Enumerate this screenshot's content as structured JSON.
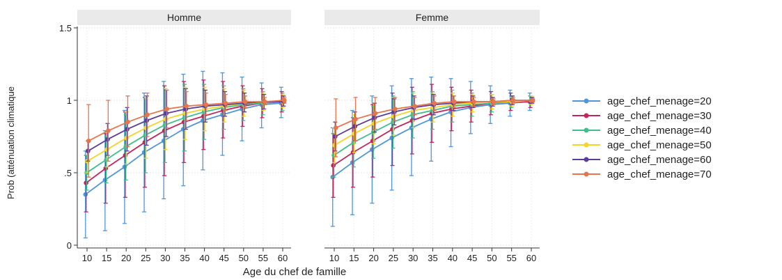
{
  "chart_data": {
    "type": "line",
    "ylabel": "Prob (atténuation climatique",
    "xlabel": "Age du chef de famille",
    "x": [
      10,
      15,
      20,
      25,
      30,
      35,
      40,
      45,
      50,
      55,
      60
    ],
    "xticks": [
      10,
      15,
      20,
      25,
      30,
      35,
      40,
      45,
      50,
      55,
      60
    ],
    "ylim": [
      0,
      1.5
    ],
    "yticks": [
      {
        "value": 0,
        "label": "0"
      },
      {
        "value": 0.5,
        "label": ".5"
      },
      {
        "value": 1,
        "label": "1"
      },
      {
        "value": 1.5,
        "label": "1.5"
      }
    ],
    "grid": true,
    "legend_position": "right",
    "series_colors": [
      "#4e96d9",
      "#c2255b",
      "#3fbf8a",
      "#f5d327",
      "#5a3c9a",
      "#e8744b"
    ],
    "panels": [
      {
        "title": "Homme",
        "series": [
          {
            "name": "age_chef_menage=20",
            "values": [
              0.35,
              0.45,
              0.54,
              0.64,
              0.72,
              0.8,
              0.86,
              0.9,
              0.94,
              0.97,
              0.98
            ],
            "lower": [
              0.05,
              0.1,
              0.15,
              0.23,
              0.32,
              0.41,
              0.52,
              0.62,
              0.72,
              0.81,
              0.88
            ],
            "upper": [
              0.65,
              0.79,
              0.93,
              1.05,
              1.13,
              1.18,
              1.2,
              1.19,
              1.16,
              1.12,
              1.09
            ]
          },
          {
            "name": "age_chef_menage=30",
            "values": [
              0.43,
              0.53,
              0.62,
              0.71,
              0.79,
              0.85,
              0.89,
              0.93,
              0.96,
              0.98,
              0.99
            ],
            "lower": [
              0.23,
              0.29,
              0.33,
              0.4,
              0.48,
              0.57,
              0.66,
              0.74,
              0.82,
              0.88,
              0.92
            ],
            "upper": [
              0.62,
              0.77,
              0.92,
              1.02,
              1.1,
              1.13,
              1.14,
              1.13,
              1.1,
              1.08,
              1.06
            ]
          },
          {
            "name": "age_chef_menage=40",
            "values": [
              0.5,
              0.59,
              0.68,
              0.76,
              0.83,
              0.88,
              0.92,
              0.95,
              0.97,
              0.98,
              0.99
            ],
            "lower": [
              0.38,
              0.43,
              0.45,
              0.5,
              0.57,
              0.65,
              0.73,
              0.8,
              0.86,
              0.9,
              0.93
            ],
            "upper": [
              0.62,
              0.75,
              0.9,
              1.01,
              1.08,
              1.11,
              1.11,
              1.1,
              1.08,
              1.06,
              1.05
            ]
          },
          {
            "name": "age_chef_menage=50",
            "values": [
              0.58,
              0.66,
              0.74,
              0.81,
              0.87,
              0.91,
              0.94,
              0.96,
              0.98,
              0.99,
              0.99
            ],
            "lower": [
              0.5,
              0.54,
              0.56,
              0.6,
              0.66,
              0.73,
              0.79,
              0.85,
              0.89,
              0.93,
              0.95
            ],
            "upper": [
              0.66,
              0.78,
              0.92,
              1.02,
              1.08,
              1.09,
              1.09,
              1.08,
              1.07,
              1.05,
              1.04
            ]
          },
          {
            "name": "age_chef_menage=60",
            "values": [
              0.65,
              0.73,
              0.8,
              0.86,
              0.91,
              0.94,
              0.96,
              0.97,
              0.98,
              0.99,
              0.99
            ],
            "lower": [
              0.58,
              0.62,
              0.65,
              0.69,
              0.75,
              0.8,
              0.85,
              0.89,
              0.92,
              0.94,
              0.96
            ],
            "upper": [
              0.72,
              0.84,
              0.95,
              1.03,
              1.07,
              1.08,
              1.07,
              1.06,
              1.05,
              1.04,
              1.03
            ]
          },
          {
            "name": "age_chef_menage=70",
            "values": [
              0.72,
              0.79,
              0.85,
              0.9,
              0.94,
              0.96,
              0.97,
              0.98,
              0.99,
              0.99,
              1.0
            ],
            "lower": [
              0.47,
              0.58,
              0.68,
              0.75,
              0.81,
              0.86,
              0.9,
              0.93,
              0.95,
              0.97,
              0.98
            ],
            "upper": [
              0.97,
              1.0,
              1.03,
              1.05,
              1.07,
              1.06,
              1.05,
              1.04,
              1.03,
              1.02,
              1.02
            ]
          }
        ]
      },
      {
        "title": "Femme",
        "series": [
          {
            "name": "age_chef_menage=20",
            "values": [
              0.47,
              0.57,
              0.66,
              0.74,
              0.81,
              0.87,
              0.92,
              0.95,
              0.97,
              0.98,
              0.99
            ],
            "lower": [
              0.13,
              0.21,
              0.29,
              0.38,
              0.48,
              0.58,
              0.68,
              0.77,
              0.84,
              0.89,
              0.93
            ],
            "upper": [
              0.81,
              0.93,
              1.03,
              1.1,
              1.15,
              1.16,
              1.15,
              1.13,
              1.1,
              1.07,
              1.05
            ]
          },
          {
            "name": "age_chef_menage=30",
            "values": [
              0.55,
              0.64,
              0.72,
              0.8,
              0.86,
              0.91,
              0.94,
              0.96,
              0.98,
              0.99,
              0.99
            ],
            "lower": [
              0.33,
              0.4,
              0.47,
              0.55,
              0.63,
              0.71,
              0.79,
              0.85,
              0.9,
              0.93,
              0.95
            ],
            "upper": [
              0.77,
              0.88,
              0.97,
              1.05,
              1.09,
              1.11,
              1.09,
              1.07,
              1.06,
              1.05,
              1.03
            ]
          },
          {
            "name": "age_chef_menage=40",
            "values": [
              0.62,
              0.71,
              0.78,
              0.85,
              0.9,
              0.93,
              0.96,
              0.97,
              0.98,
              0.99,
              1.0
            ],
            "lower": [
              0.47,
              0.54,
              0.6,
              0.67,
              0.74,
              0.8,
              0.85,
              0.89,
              0.92,
              0.95,
              0.97
            ],
            "upper": [
              0.77,
              0.88,
              0.96,
              1.03,
              1.06,
              1.06,
              1.07,
              1.05,
              1.04,
              1.03,
              1.03
            ]
          },
          {
            "name": "age_chef_menage=50",
            "values": [
              0.69,
              0.77,
              0.84,
              0.89,
              0.93,
              0.95,
              0.97,
              0.98,
              0.99,
              0.99,
              1.0
            ],
            "lower": [
              0.57,
              0.64,
              0.7,
              0.76,
              0.81,
              0.85,
              0.89,
              0.92,
              0.94,
              0.96,
              0.97
            ],
            "upper": [
              0.81,
              0.9,
              0.98,
              1.02,
              1.05,
              1.05,
              1.05,
              1.04,
              1.04,
              1.02,
              1.03
            ]
          },
          {
            "name": "age_chef_menage=60",
            "values": [
              0.75,
              0.82,
              0.88,
              0.92,
              0.95,
              0.97,
              0.98,
              0.99,
              0.99,
              1.0,
              1.0
            ],
            "lower": [
              0.65,
              0.72,
              0.78,
              0.83,
              0.87,
              0.9,
              0.93,
              0.95,
              0.96,
              0.97,
              0.98
            ],
            "upper": [
              0.85,
              0.92,
              0.98,
              1.01,
              1.03,
              1.04,
              1.03,
              1.03,
              1.02,
              1.03,
              1.02
            ]
          },
          {
            "name": "age_chef_menage=70",
            "values": [
              0.81,
              0.87,
              0.91,
              0.94,
              0.96,
              0.98,
              0.99,
              0.99,
              0.99,
              1.0,
              1.0
            ],
            "lower": [
              0.61,
              0.72,
              0.8,
              0.86,
              0.9,
              0.93,
              0.95,
              0.96,
              0.97,
              0.98,
              0.99
            ],
            "upper": [
              1.01,
              1.02,
              1.02,
              1.02,
              1.02,
              1.03,
              1.03,
              1.02,
              1.01,
              1.02,
              1.01
            ]
          }
        ]
      }
    ]
  }
}
